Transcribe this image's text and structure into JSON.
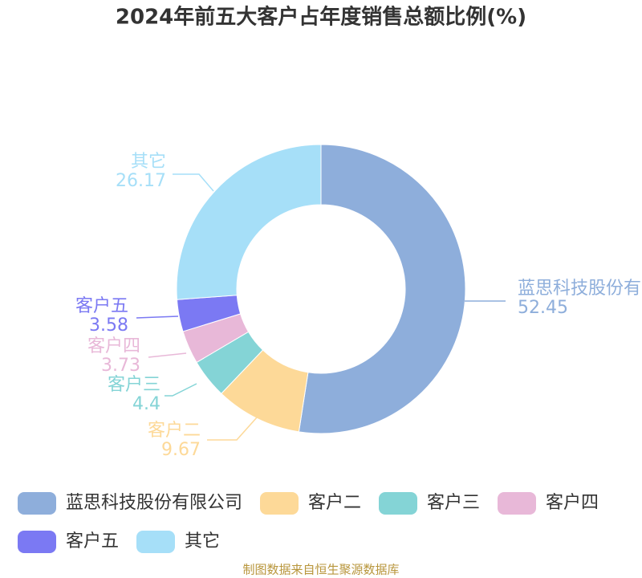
{
  "chart_data": {
    "type": "donut",
    "title": "2024年前五大客户占年度销售总额比例(%)",
    "categories": [
      "蓝思科技股份有限公司",
      "客户二",
      "客户三",
      "客户四",
      "客户五",
      "其它"
    ],
    "values": [
      52.45,
      9.67,
      4.4,
      3.73,
      3.58,
      26.17
    ],
    "colors": [
      "#8eaedb",
      "#fdd998",
      "#84d4d6",
      "#e8b8d8",
      "#7b79f3",
      "#a6dff8"
    ],
    "source": "制图数据来自恒生聚源数据库"
  }
}
